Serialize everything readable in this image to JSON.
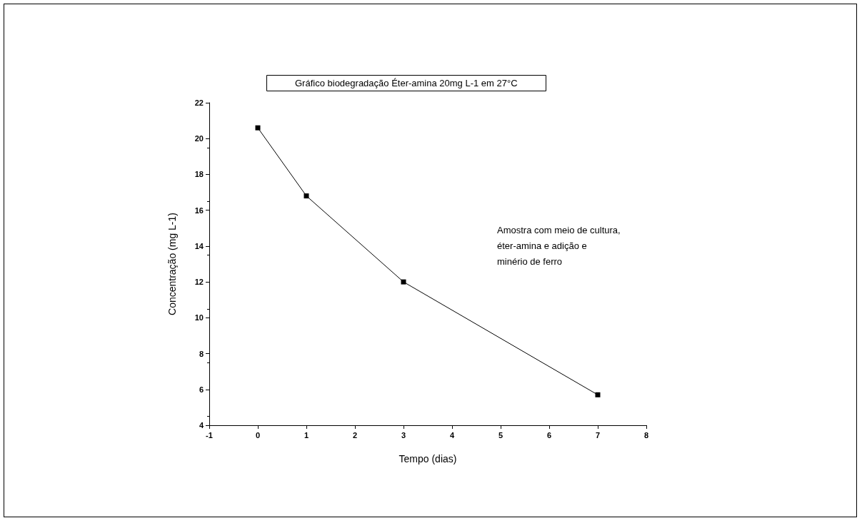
{
  "chart_data": {
    "type": "line",
    "title": "Gráfico biodegradação Éter-amina 20mg L-1 em 27°C",
    "xlabel": "Tempo (dias)",
    "ylabel": "Concentração (mg L-1)",
    "annotations": [
      "Amostra com meio de cultura,\néter-amina e adição e\nminério de ferro"
    ],
    "x": [
      0,
      1,
      3,
      7
    ],
    "series": [
      {
        "color": "#000000",
        "values": [
          20.6,
          16.8,
          12.0,
          5.7
        ]
      }
    ],
    "xlim": [
      -1,
      8
    ],
    "xticks": [
      -1,
      0,
      1,
      2,
      3,
      4,
      5,
      6,
      7,
      8
    ],
    "ylim": [
      4,
      22
    ],
    "yticks": [
      4,
      6,
      8,
      10,
      12,
      14,
      16,
      18,
      20,
      22
    ],
    "marker": "square",
    "line_style": "solid"
  }
}
